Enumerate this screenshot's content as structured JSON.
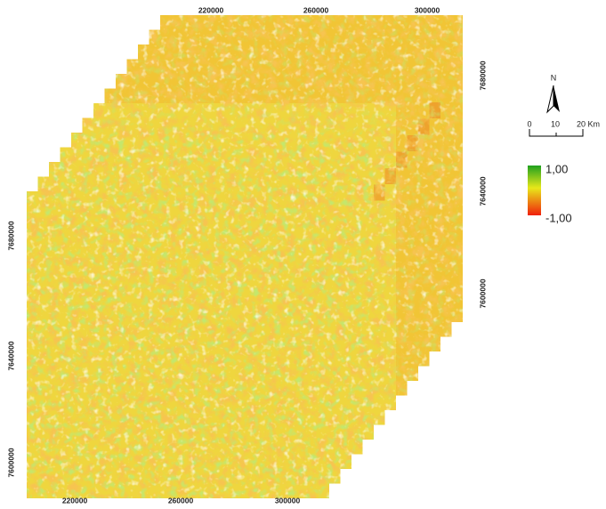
{
  "map": {
    "x_labels_top": [
      "220000",
      "260000",
      "300000"
    ],
    "x_labels_bottom": [
      "220000",
      "260000",
      "300000"
    ],
    "y_labels_left": [
      "7680000",
      "7640000",
      "7600000"
    ],
    "y_labels_right": [
      "7680000",
      "7640000",
      "7600000"
    ],
    "north": "N",
    "scale": [
      "0",
      "10",
      "20 Km"
    ],
    "legend": {
      "max": "1,00",
      "min": "-1,00"
    }
  }
}
